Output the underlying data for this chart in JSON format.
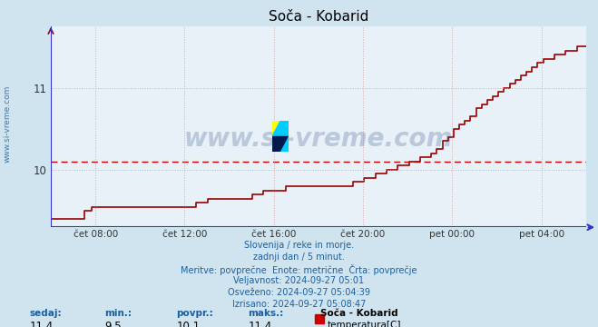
{
  "title": "Soča - Kobarid",
  "bg_color": "#d0e4f0",
  "plot_bg_color": "#e8f0f8",
  "line_color": "#990000",
  "axis_color": "#3333cc",
  "avg_line_color": "#cc0000",
  "avg_value": 10.1,
  "grid_color": "#ddaaaa",
  "ylim": [
    9.3,
    11.75
  ],
  "y_ticks": [
    10,
    11
  ],
  "x_tick_labels": [
    "čet 08:00",
    "čet 12:00",
    "čet 16:00",
    "čet 20:00",
    "pet 00:00",
    "pet 04:00"
  ],
  "x_tick_positions": [
    2,
    6,
    10,
    14,
    18,
    22
  ],
  "title_fontsize": 11,
  "subtitle_lines": [
    "Slovenija / reke in morje.",
    "zadnji dan / 5 minut.",
    "Meritve: povprečne  Enote: metrične  Črta: povprečje",
    "Veljavnost: 2024-09-27 05:01",
    "Osveženo: 2024-09-27 05:04:39",
    "Izrisano: 2024-09-27 05:08:47"
  ],
  "footer_labels": [
    "sedaj:",
    "min.:",
    "povpr.:",
    "maks.:"
  ],
  "footer_values": [
    "11,4",
    "9,5",
    "10,1",
    "11,4"
  ],
  "legend_station": "Soča - Kobarid",
  "legend_label": "temperatura[C]",
  "legend_color": "#cc0000",
  "watermark_text": "www.si-vreme.com",
  "watermark_color": "#1a3a7a",
  "watermark_alpha": 0.22,
  "text_color": "#1a5fa0"
}
